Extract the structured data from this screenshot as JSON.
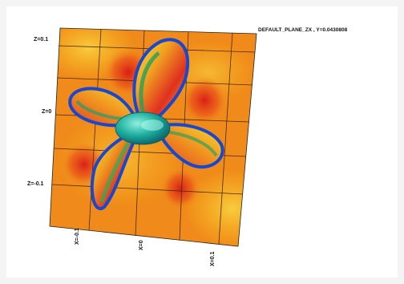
{
  "plot": {
    "plane_label": "DEFAULT_PLANE_ZX , Y=0.0430808",
    "z_ticks": [
      "Z=0.1",
      "Z=0",
      "Z=-0.1"
    ],
    "x_ticks": [
      "X=-0.1",
      "X=0",
      "X=0.1"
    ]
  },
  "colors": {
    "field_background": "#f08a1a",
    "field_yellow": "#f8c020",
    "high_red": "#e02020",
    "low_blue": "#1848d0",
    "hub": "#1ab0a8",
    "grid_lines": "#4a2a10"
  }
}
